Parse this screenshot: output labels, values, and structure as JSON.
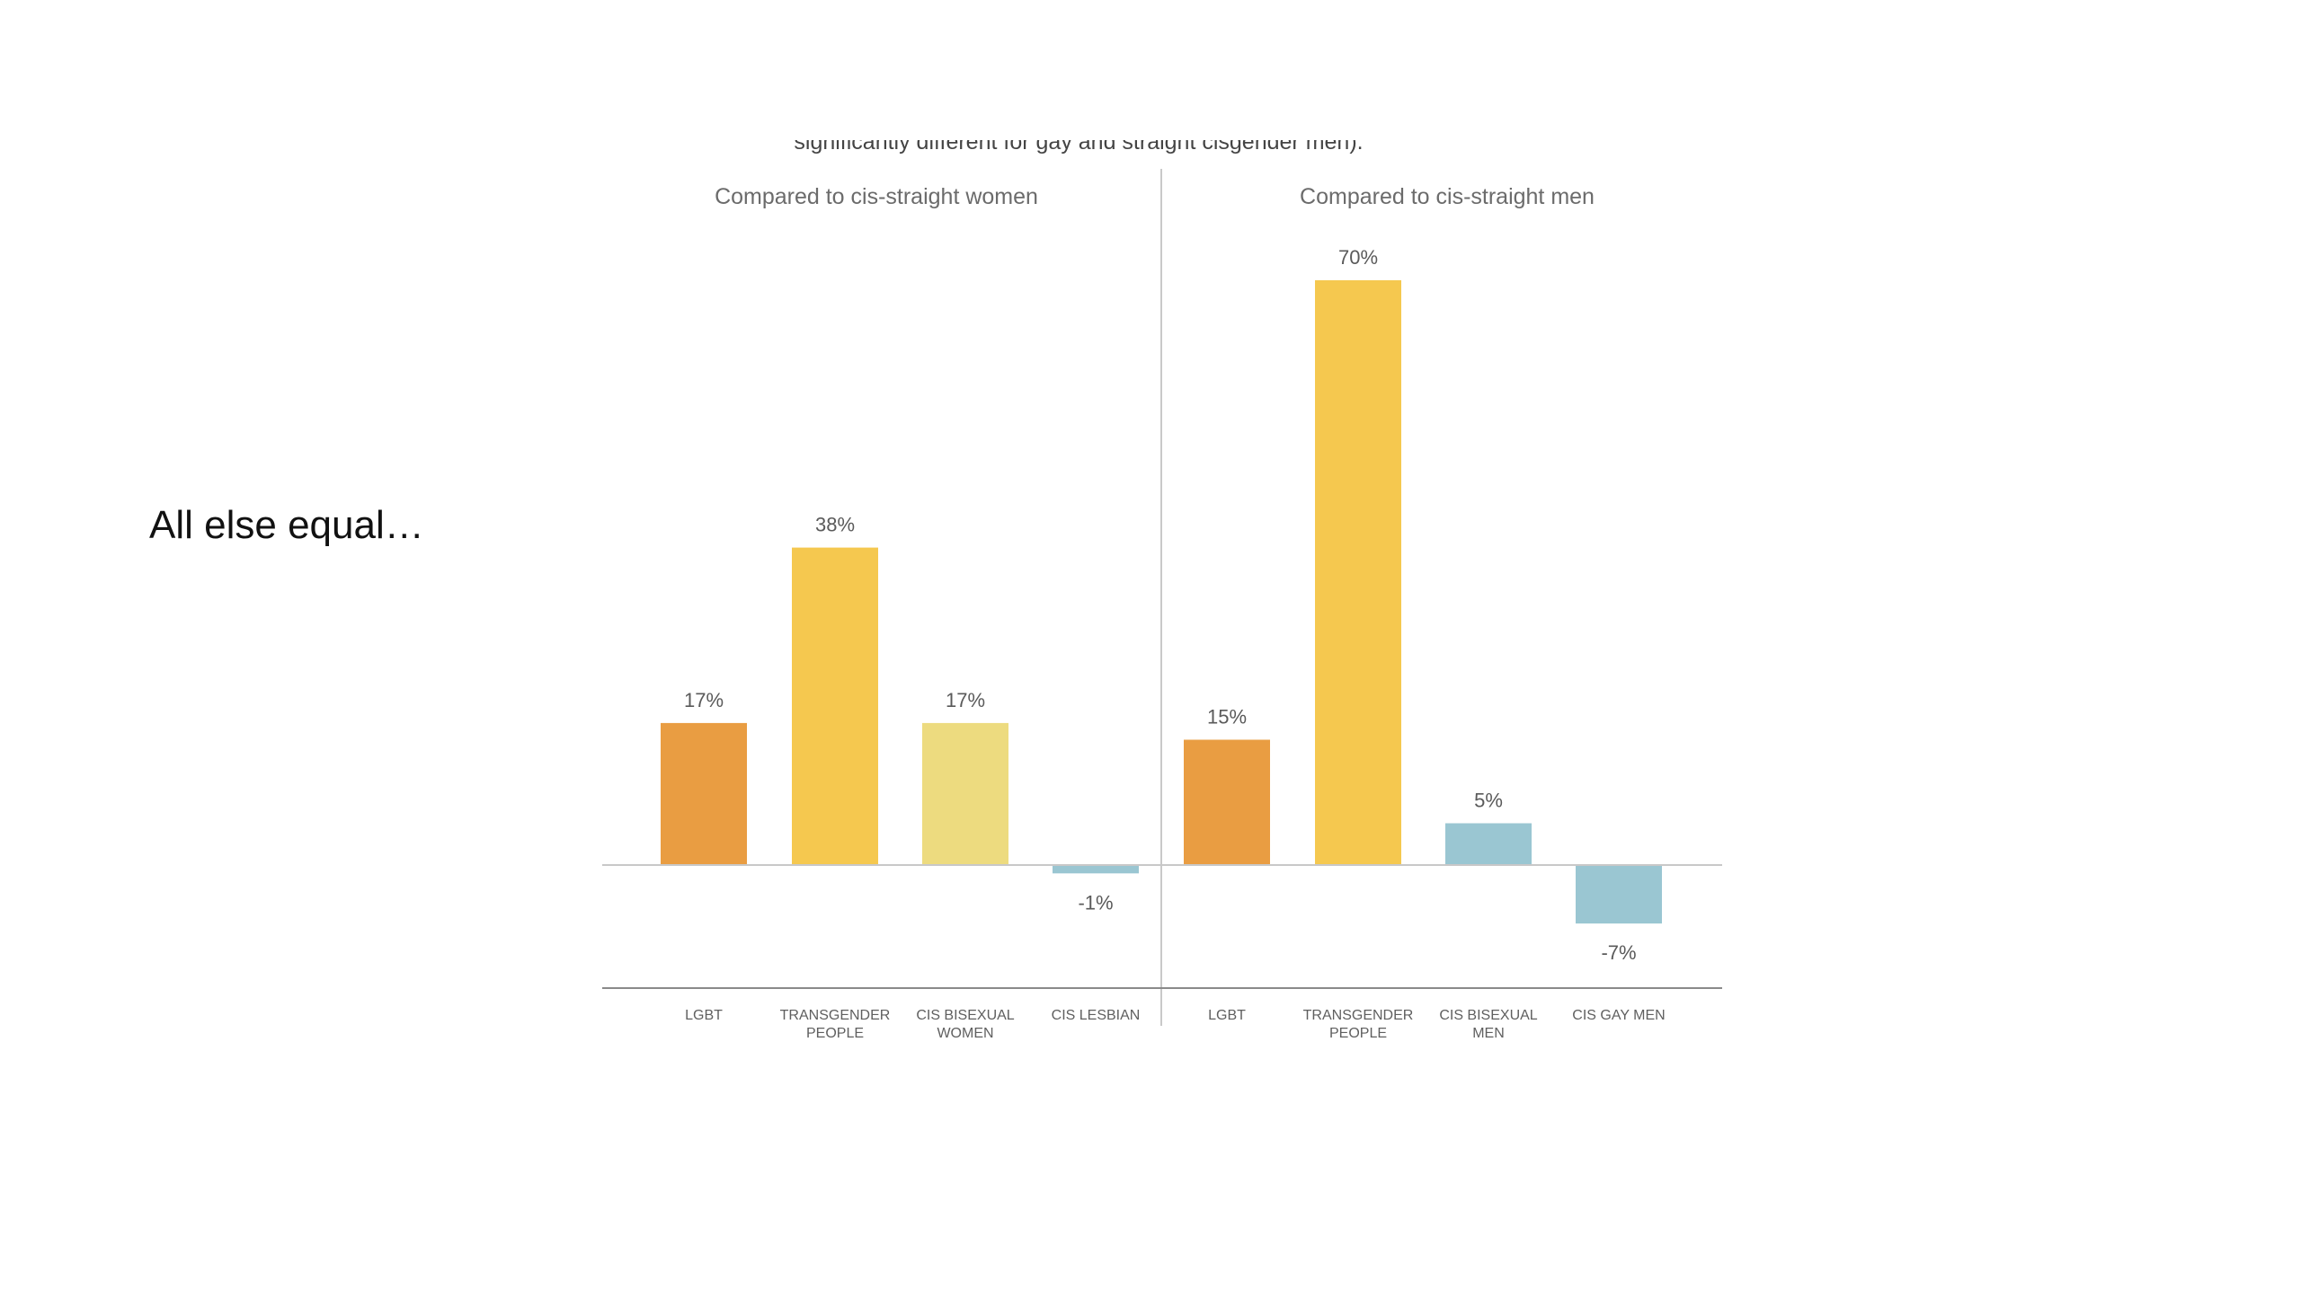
{
  "slide": {
    "heading": "All else equal…",
    "cut_caption": "significantly different for gay and straight cisgender men)."
  },
  "chart_data": [
    {
      "type": "bar",
      "title": "Compared to cis-straight women",
      "categories": [
        "LGBT",
        "TRANSGENDER PEOPLE",
        "CIS BISEXUAL WOMEN",
        "CIS LESBIAN"
      ],
      "values": [
        17,
        38,
        17,
        -1
      ],
      "value_labels": [
        "17%",
        "38%",
        "17%",
        "-1%"
      ],
      "colors": [
        "#e99d42",
        "#f5c84f",
        "#eddb7f",
        "#9ac6d2"
      ],
      "unit": "%",
      "ylim": [
        -14,
        70
      ],
      "grid": false
    },
    {
      "type": "bar",
      "title": "Compared to cis-straight men",
      "categories": [
        "LGBT",
        "TRANSGENDER PEOPLE",
        "CIS BISEXUAL MEN",
        "CIS GAY MEN"
      ],
      "values": [
        15,
        70,
        5,
        -7
      ],
      "value_labels": [
        "15%",
        "70%",
        "5%",
        "-7%"
      ],
      "colors": [
        "#e99d42",
        "#f5c84f",
        "#9ac6d2",
        "#9ac6d2"
      ],
      "unit": "%",
      "ylim": [
        -14,
        70
      ],
      "grid": false
    }
  ],
  "style": {
    "title_color": "#6b6b6b",
    "label_color": "#5f5f5f",
    "value_color": "#5a5a5a",
    "axis_color": "#c8c8c8",
    "bottom_axis_color": "#8a8a8a",
    "divider_color": "#c9c9c9"
  }
}
